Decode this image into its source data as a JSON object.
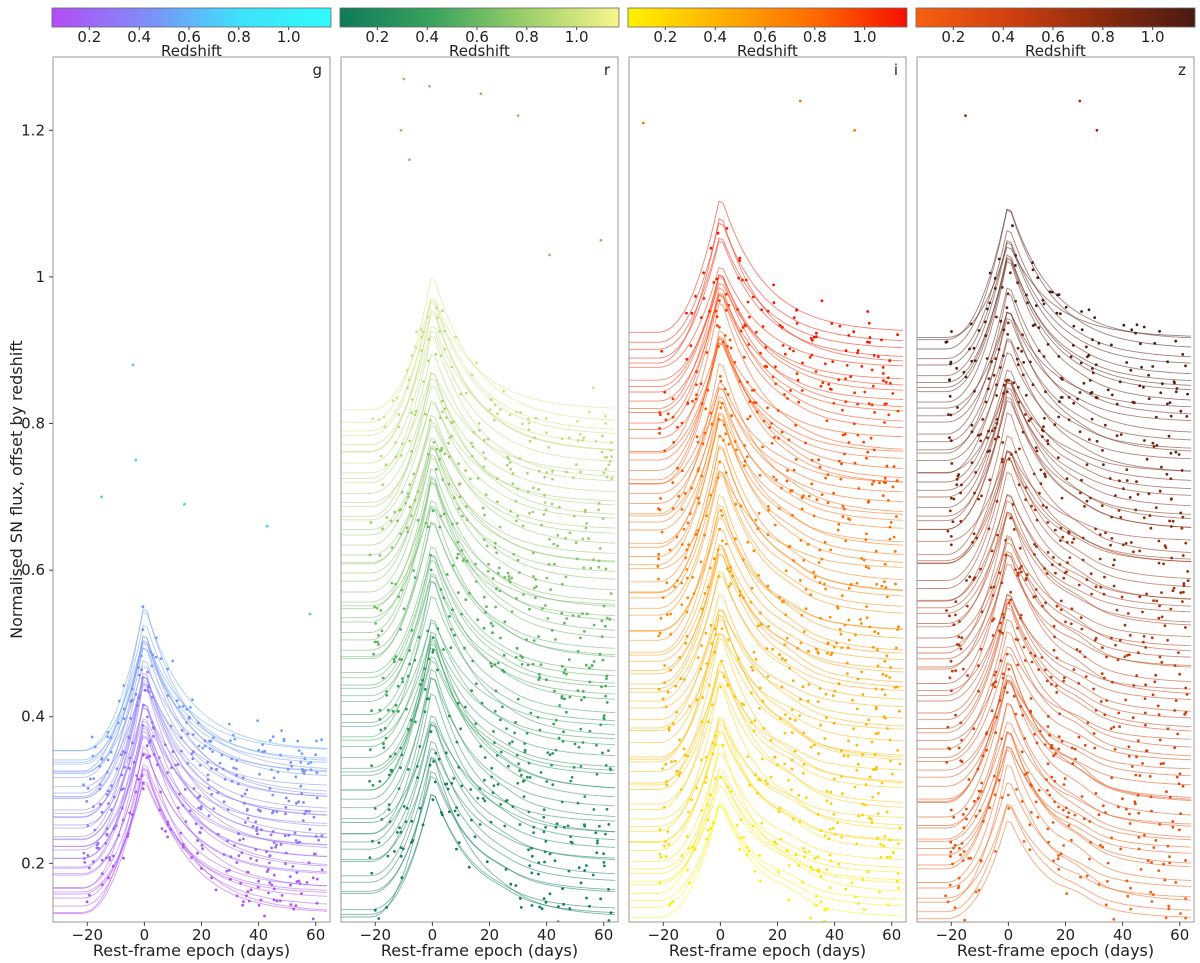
{
  "chart_data": {
    "type": "scatter",
    "title": "",
    "ylabel": "Normalised SN flux, offset by redshift",
    "ylim": [
      0.12,
      1.3
    ],
    "yticks": [
      {
        "v": 0.2,
        "label": "0.2"
      },
      {
        "v": 0.4,
        "label": "0.4"
      },
      {
        "v": 0.6,
        "label": "0.6"
      },
      {
        "v": 0.8,
        "label": "0.8"
      },
      {
        "v": 1.0,
        "label": "1"
      },
      {
        "v": 1.2,
        "label": "1.2"
      }
    ],
    "xlim": [
      -32,
      65
    ],
    "xticks": [
      {
        "v": -20,
        "label": "−20"
      },
      {
        "v": 0,
        "label": "0"
      },
      {
        "v": 20,
        "label": "20"
      },
      {
        "v": 40,
        "label": "40"
      },
      {
        "v": 60,
        "label": "60"
      }
    ],
    "colorbar": {
      "label": "Redshift",
      "range": [
        0.05,
        1.17
      ],
      "ticks": [
        {
          "v": 0.2,
          "label": "0.2"
        },
        {
          "v": 0.4,
          "label": "0.4"
        },
        {
          "v": 0.6,
          "label": "0.6"
        },
        {
          "v": 0.8,
          "label": "0.8"
        },
        {
          "v": 1.0,
          "label": "1.0"
        }
      ]
    },
    "panels": [
      {
        "band": "g",
        "xlabel": "Rest-frame epoch (days)",
        "colormap": [
          "#b44cf5",
          "#7f8cf8",
          "#3fe0fb",
          "#2ffbfb"
        ],
        "z_max": 0.55,
        "n_curves": 40,
        "peak_height": 0.2,
        "secondary_bump": 0.0,
        "baseline_floor": 0.13
      },
      {
        "band": "r",
        "xlabel": "Rest-frame epoch (days)",
        "colormap": [
          "#0e7a58",
          "#3aa35e",
          "#9ccf6a",
          "#f7f58a"
        ],
        "z_max": 1.02,
        "n_curves": 70,
        "peak_height": 0.19,
        "secondary_bump": 0.02,
        "baseline_floor": 0.12
      },
      {
        "band": "i",
        "xlabel": "Rest-frame epoch (days)",
        "colormap": [
          "#fff200",
          "#ffb000",
          "#ff6a00",
          "#f51000"
        ],
        "z_max": 1.17,
        "n_curves": 80,
        "peak_height": 0.18,
        "secondary_bump": 0.05,
        "baseline_floor": 0.12
      },
      {
        "band": "z",
        "xlabel": "Rest-frame epoch (days)",
        "colormap": [
          "#f86010",
          "#d04010",
          "#8a2a0e",
          "#4a1a12"
        ],
        "z_max": 1.17,
        "n_curves": 80,
        "peak_height": 0.17,
        "secondary_bump": 0.06,
        "baseline_floor": 0.12
      }
    ],
    "outlier_points": [
      {
        "panel": "g",
        "x": -4,
        "y": 0.88
      },
      {
        "panel": "g",
        "x": -3,
        "y": 0.75
      },
      {
        "panel": "g",
        "x": -15,
        "y": 0.7
      },
      {
        "panel": "g",
        "x": 14,
        "y": 0.69
      },
      {
        "panel": "g",
        "x": 43,
        "y": 0.66
      },
      {
        "panel": "g",
        "x": 58,
        "y": 0.54
      },
      {
        "panel": "r",
        "x": -10,
        "y": 1.27
      },
      {
        "panel": "r",
        "x": -1,
        "y": 1.26
      },
      {
        "panel": "r",
        "x": 17,
        "y": 1.25
      },
      {
        "panel": "r",
        "x": 30,
        "y": 1.22
      },
      {
        "panel": "r",
        "x": -11,
        "y": 1.2
      },
      {
        "panel": "r",
        "x": -8,
        "y": 1.16
      },
      {
        "panel": "r",
        "x": 59,
        "y": 1.05
      },
      {
        "panel": "r",
        "x": 41,
        "y": 1.03
      },
      {
        "panel": "i",
        "x": -27,
        "y": 1.21
      },
      {
        "panel": "i",
        "x": 28,
        "y": 1.24
      },
      {
        "panel": "i",
        "x": 47,
        "y": 1.2
      },
      {
        "panel": "z",
        "x": 25,
        "y": 1.24
      },
      {
        "panel": "z",
        "x": -15,
        "y": 1.22
      },
      {
        "panel": "z",
        "x": 31,
        "y": 1.2
      }
    ]
  }
}
